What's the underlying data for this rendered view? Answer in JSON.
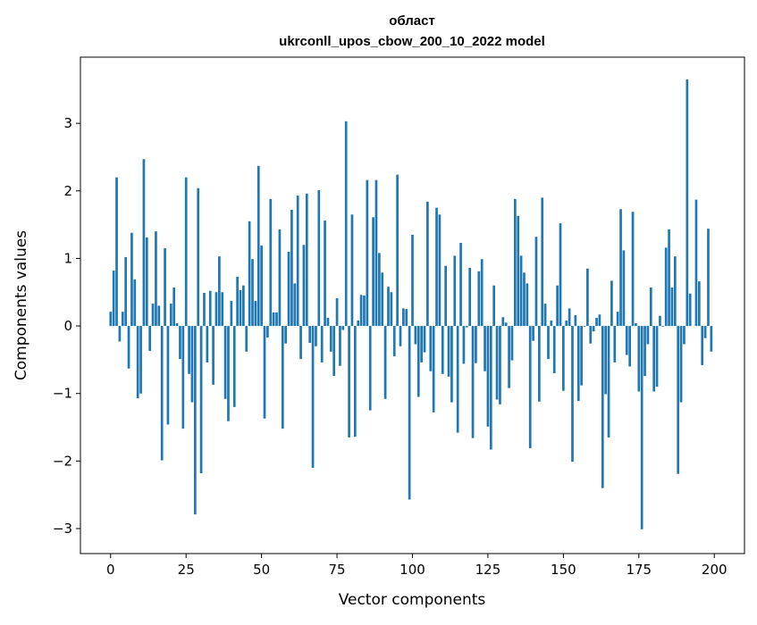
{
  "chart_data": {
    "type": "bar",
    "title": [
      "област",
      "ukrconll_upos_cbow_200_10_2022 model"
    ],
    "xlabel": "Vector components",
    "ylabel": "Components values",
    "xlim": [
      -10,
      210
    ],
    "ylim": [
      -3.37,
      3.98
    ],
    "grid": false,
    "bar_color": "#1f77b4",
    "xticks": [
      0,
      25,
      50,
      75,
      100,
      125,
      150,
      175,
      200
    ],
    "xtick_labels": [
      "0",
      "25",
      "50",
      "75",
      "100",
      "125",
      "150",
      "175",
      "200"
    ],
    "yticks": [
      -3,
      -2,
      -1,
      0,
      1,
      2,
      3
    ],
    "ytick_labels": [
      "−3",
      "−2",
      "−1",
      "0",
      "1",
      "2",
      "3"
    ],
    "values": [
      0.21,
      0.82,
      2.2,
      -0.23,
      0.21,
      1.02,
      -0.63,
      1.38,
      0.69,
      -1.07,
      -1.0,
      2.47,
      1.31,
      -0.37,
      0.33,
      1.4,
      0.3,
      -1.99,
      1.15,
      -1.46,
      0.33,
      0.57,
      0.04,
      -0.49,
      -1.52,
      2.2,
      -0.71,
      -1.13,
      -2.79,
      2.04,
      -2.18,
      0.49,
      -0.54,
      0.52,
      -0.87,
      0.5,
      1.03,
      0.5,
      -1.08,
      -1.41,
      0.37,
      -1.2,
      0.73,
      0.53,
      0.6,
      -0.38,
      1.55,
      0.99,
      0.37,
      2.37,
      1.19,
      -1.37,
      -0.17,
      1.88,
      0.2,
      0.2,
      1.43,
      -1.52,
      -0.26,
      1.1,
      1.72,
      0.63,
      1.93,
      -0.49,
      1.2,
      1.96,
      -0.25,
      -2.1,
      -0.3,
      2.01,
      -0.54,
      1.56,
      0.12,
      -0.38,
      -0.74,
      0.41,
      -0.59,
      -0.06,
      3.03,
      -1.65,
      1.65,
      -1.64,
      0.08,
      0.46,
      0.45,
      2.16,
      -1.25,
      1.61,
      2.16,
      1.08,
      0.79,
      -1.08,
      0.58,
      0.5,
      -0.45,
      2.24,
      -0.3,
      0.26,
      0.25,
      -2.57,
      1.35,
      -0.27,
      -1.05,
      -0.54,
      -0.39,
      1.84,
      -0.67,
      -1.28,
      1.75,
      1.65,
      -0.71,
      0.89,
      -0.75,
      -1.13,
      1.04,
      -1.58,
      1.23,
      -0.56,
      -0.02,
      0.86,
      -1.66,
      -0.55,
      0.81,
      0.99,
      -0.67,
      -1.49,
      -1.83,
      0.6,
      -1.09,
      -1.16,
      0.13,
      0.05,
      -0.92,
      -0.51,
      1.88,
      1.63,
      1.04,
      0.79,
      0.63,
      -1.81,
      -0.22,
      1.32,
      -1.12,
      1.9,
      0.33,
      -0.49,
      0.08,
      -0.7,
      0.6,
      1.52,
      -0.96,
      0.08,
      0.26,
      -2.01,
      0.16,
      -1.11,
      -0.88,
      -0.01,
      0.85,
      -0.26,
      -0.08,
      0.12,
      0.17,
      -2.4,
      -1.01,
      -1.65,
      0.67,
      -0.54,
      0.21,
      1.73,
      1.12,
      -0.43,
      -0.6,
      1.69,
      0.04,
      -0.97,
      -3.01,
      -0.74,
      -0.27,
      0.57,
      -0.97,
      -0.9,
      0.15,
      -0.01,
      1.16,
      1.43,
      0.57,
      1.03,
      -2.19,
      -1.13,
      -0.27,
      3.65,
      0.48,
      0.0,
      1.87,
      0.66,
      -0.58,
      -0.18,
      1.44,
      -0.38
    ]
  }
}
